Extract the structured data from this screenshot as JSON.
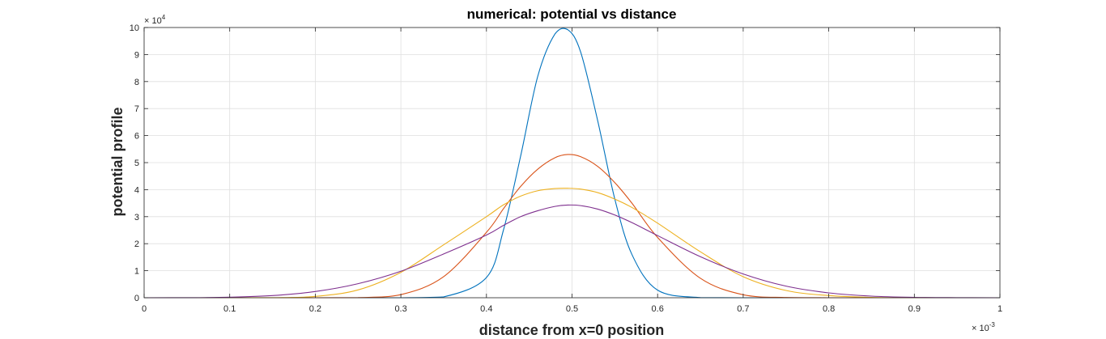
{
  "chart_data": {
    "type": "line",
    "title": "numerical: potential vs distance",
    "xlabel": "distance from x=0 position",
    "ylabel": "potential profile",
    "x_exponent": {
      "base": "× 10",
      "power": "-3"
    },
    "y_exponent": {
      "base": "× 10",
      "power": "4"
    },
    "xlim": [
      0,
      0.001
    ],
    "ylim": [
      0,
      100000
    ],
    "grid": true,
    "x_ticks": [
      0,
      0.1,
      0.2,
      0.3,
      0.4,
      0.5,
      0.6,
      0.7,
      0.8,
      0.9,
      1
    ],
    "x_tick_labels": [
      "0",
      "0.1",
      "0.2",
      "0.3",
      "0.4",
      "0.5",
      "0.6",
      "0.7",
      "0.8",
      "0.9",
      "1"
    ],
    "y_ticks": [
      0,
      1,
      2,
      3,
      4,
      5,
      6,
      7,
      8,
      9,
      10
    ],
    "y_tick_labels": [
      "0",
      "1",
      "2",
      "3",
      "4",
      "5",
      "6",
      "7",
      "8",
      "9",
      "10"
    ],
    "x": [
      0,
      5e-05,
      0.0001,
      0.00015,
      0.0002,
      0.00025,
      0.0003,
      0.00035,
      0.0004,
      0.00042,
      0.00044,
      0.00046,
      0.00048,
      0.000495,
      0.00051,
      0.00053,
      0.00055,
      0.00057,
      0.0006,
      0.00065,
      0.0007,
      0.00075,
      0.0008,
      0.00085,
      0.0009,
      0.00095,
      0.001
    ],
    "series": [
      {
        "color": "#0072BD",
        "values": [
          0,
          0,
          0,
          0,
          0,
          0,
          0,
          320,
          7500,
          25200,
          52500,
          82000,
          97600,
          99200,
          91000,
          65500,
          36500,
          16000,
          2800,
          60,
          0,
          0,
          0,
          0,
          0,
          0,
          0
        ]
      },
      {
        "color": "#D95319",
        "values": [
          0,
          0,
          0,
          0,
          0,
          60,
          1150,
          7800,
          24200,
          33000,
          41200,
          47600,
          51800,
          53000,
          52200,
          48600,
          42600,
          35000,
          22300,
          7200,
          1100,
          80,
          0,
          0,
          0,
          0,
          0
        ]
      },
      {
        "color": "#EDB120",
        "values": [
          0,
          0,
          0,
          40,
          500,
          2900,
          9400,
          19600,
          30000,
          34400,
          37600,
          39600,
          40400,
          40500,
          40200,
          38900,
          36500,
          33400,
          27600,
          17000,
          7800,
          2700,
          800,
          150,
          20,
          0,
          0
        ]
      },
      {
        "color": "#7E2F8E",
        "values": [
          0,
          20,
          200,
          800,
          2300,
          5200,
          9800,
          16200,
          23200,
          26800,
          30000,
          32200,
          33800,
          34300,
          34100,
          32800,
          30600,
          27800,
          23000,
          15200,
          8800,
          4300,
          1800,
          600,
          150,
          30,
          0
        ]
      }
    ]
  }
}
